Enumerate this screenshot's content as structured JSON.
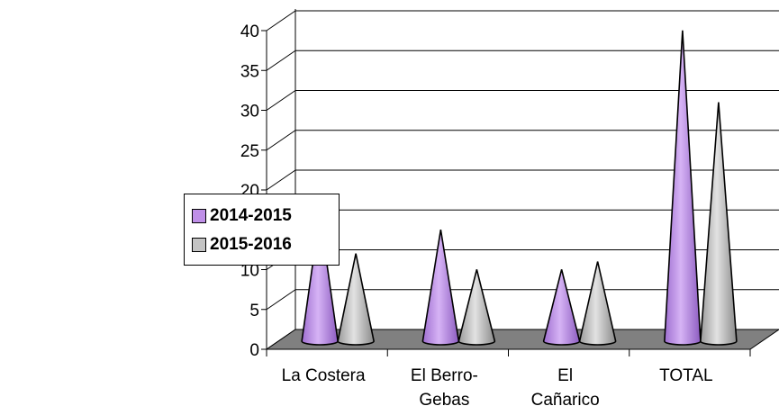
{
  "chart_data": {
    "type": "bar",
    "subtype": "3d-cone",
    "categories": [
      [
        "La Costera"
      ],
      [
        "El Berro-",
        "Gebas"
      ],
      [
        "El",
        "Cañarico"
      ],
      [
        "TOTAL"
      ]
    ],
    "series": [
      {
        "name": "2014-2015",
        "values": [
          16,
          14,
          9,
          39
        ],
        "color": "#bf8fe8"
      },
      {
        "name": "2015-2016",
        "values": [
          11,
          9,
          10,
          30
        ],
        "color": "#c4c4c4"
      }
    ],
    "yticks": [
      "0",
      "5",
      "10",
      "15",
      "20",
      "25",
      "30",
      "35",
      "40"
    ],
    "ylim": [
      0,
      40
    ],
    "grid": true,
    "legend_position": "left",
    "floor_color": "#808080"
  }
}
